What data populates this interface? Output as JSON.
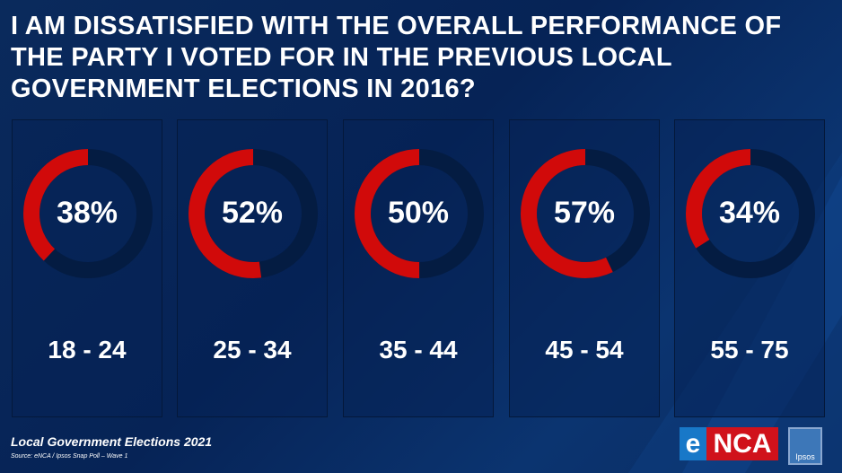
{
  "title": "I AM DISSATISFIED WITH THE OVERALL PERFORMANCE OF THE PARTY I VOTED FOR IN THE PREVIOUS LOCAL GOVERNMENT ELECTIONS IN 2016?",
  "chart_data": {
    "type": "pie",
    "subtype": "donut",
    "title": "I AM DISSATISFIED WITH THE OVERALL PERFORMANCE OF THE PARTY I VOTED FOR IN THE PREVIOUS LOCAL GOVERNMENT ELECTIONS IN 2016?",
    "categories": [
      "18 - 24",
      "25 - 34",
      "35 - 44",
      "45 - 54",
      "55 - 75"
    ],
    "values": [
      38,
      52,
      50,
      57,
      34
    ],
    "labels": [
      "38%",
      "52%",
      "50%",
      "57%",
      "34%"
    ],
    "colors": {
      "value": "#d10a0a",
      "remainder": "#041c42"
    }
  },
  "footer": {
    "title": "Local Government Elections 2021",
    "source": "Source: eNCA / Ipsos Snap Poll – Wave 1"
  },
  "logos": {
    "enca_e": "e",
    "enca_rest": "NCA",
    "ipsos": "Ipsos"
  }
}
